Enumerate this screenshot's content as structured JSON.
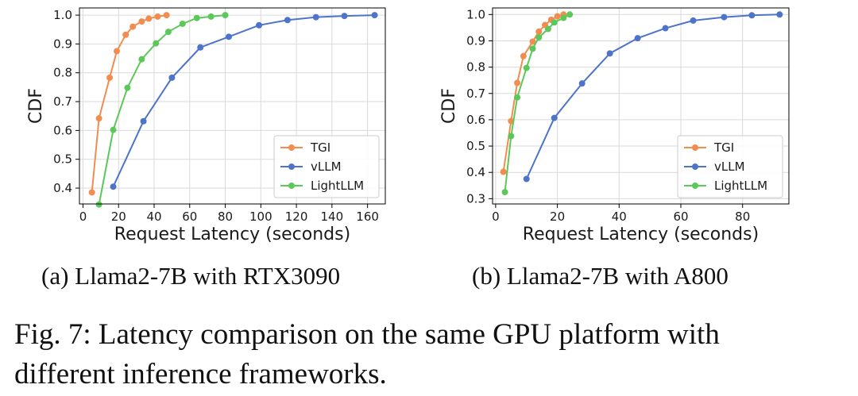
{
  "chart_data": [
    {
      "type": "line",
      "xlabel": "Request Latency (seconds)",
      "ylabel": "CDF",
      "xlim": [
        -2,
        170
      ],
      "ylim": [
        0.345,
        1.025
      ],
      "xticks": [
        0,
        20,
        40,
        60,
        80,
        100,
        120,
        140,
        160
      ],
      "yticks": [
        0.4,
        0.5,
        0.6,
        0.7,
        0.8,
        0.9,
        1.0
      ],
      "ytick_labels": [
        "0.4",
        "0.5",
        "0.6",
        "0.7",
        "0.8",
        "0.9",
        "1.0"
      ],
      "grid": true,
      "legend_position": "lower-right",
      "series": [
        {
          "name": "TGI",
          "color": "#f28c4f",
          "x": [
            5,
            9,
            15,
            19,
            24,
            28,
            33,
            37,
            42,
            47
          ],
          "y": [
            0.385,
            0.642,
            0.783,
            0.875,
            0.932,
            0.96,
            0.978,
            0.988,
            0.995,
            1.0
          ]
        },
        {
          "name": "vLLM",
          "color": "#4d74c9",
          "x": [
            17,
            34,
            50,
            66,
            82,
            99,
            115,
            131,
            147,
            164
          ],
          "y": [
            0.405,
            0.632,
            0.783,
            0.888,
            0.925,
            0.965,
            0.983,
            0.993,
            0.997,
            1.0
          ]
        },
        {
          "name": "LightLLM",
          "color": "#5cc85a",
          "x": [
            9,
            17,
            25,
            33,
            41,
            48,
            56,
            64,
            72,
            80
          ],
          "y": [
            0.343,
            0.602,
            0.748,
            0.847,
            0.902,
            0.942,
            0.97,
            0.99,
            0.995,
            1.0
          ]
        }
      ]
    },
    {
      "type": "line",
      "xlabel": "Request Latency (seconds)",
      "ylabel": "CDF",
      "xlim": [
        -1,
        95
      ],
      "ylim": [
        0.28,
        1.025
      ],
      "xticks": [
        0,
        20,
        40,
        60,
        80
      ],
      "yticks": [
        0.3,
        0.4,
        0.5,
        0.6,
        0.7,
        0.8,
        0.9,
        1.0
      ],
      "ytick_labels": [
        "0.3",
        "0.4",
        "0.5",
        "0.6",
        "0.7",
        "0.8",
        "0.9",
        "1.0"
      ],
      "grid": true,
      "legend_position": "lower-right",
      "series": [
        {
          "name": "TGI",
          "color": "#f28c4f",
          "x": [
            2.5,
            5,
            7,
            9,
            12,
            14,
            16,
            18,
            20,
            22
          ],
          "y": [
            0.402,
            0.595,
            0.74,
            0.842,
            0.897,
            0.935,
            0.96,
            0.98,
            0.993,
            1.0
          ]
        },
        {
          "name": "vLLM",
          "color": "#4d74c9",
          "x": [
            10,
            19,
            28,
            37,
            46,
            55,
            64,
            74,
            83,
            92
          ],
          "y": [
            0.375,
            0.607,
            0.738,
            0.852,
            0.91,
            0.948,
            0.977,
            0.99,
            0.997,
            1.0
          ]
        },
        {
          "name": "LightLLM",
          "color": "#5cc85a",
          "x": [
            3,
            5,
            7,
            10,
            12,
            14,
            17,
            19,
            22,
            24
          ],
          "y": [
            0.325,
            0.538,
            0.685,
            0.797,
            0.87,
            0.913,
            0.945,
            0.97,
            0.987,
            1.0
          ]
        }
      ]
    }
  ],
  "captions": {
    "sub_a": "(a) Llama2-7B with RTX3090",
    "sub_b": "(b) Llama2-7B with A800",
    "fig_line1": "Fig. 7: Latency comparison on the same GPU platform with",
    "fig_line2": "different inference frameworks."
  }
}
